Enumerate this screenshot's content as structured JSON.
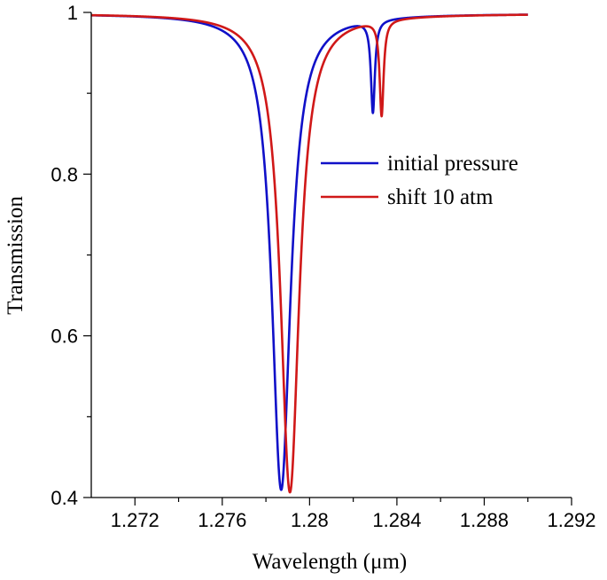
{
  "chart_data": {
    "type": "line",
    "title": "",
    "xlabel": "Wavelength (μm)",
    "ylabel": "Transmission",
    "xlim": [
      1.27,
      1.292
    ],
    "ylim": [
      0.4,
      1.0
    ],
    "x_ticks": [
      1.272,
      1.276,
      1.28,
      1.284,
      1.288,
      1.292
    ],
    "x_tick_labels": [
      "1.272",
      "1.276",
      "1.28",
      "1.284",
      "1.288",
      "1.292"
    ],
    "x_minor_ticks": [
      1.274,
      1.278,
      1.282,
      1.286,
      1.29
    ],
    "y_ticks": [
      0.4,
      0.6,
      0.8,
      1.0
    ],
    "y_tick_labels": [
      "0.4",
      "0.6",
      "0.8",
      "1"
    ],
    "y_minor_ticks": [
      0.5,
      0.7,
      0.9
    ],
    "grid": false,
    "legend_position": "right",
    "x_range": [
      1.27,
      1.29
    ],
    "series": [
      {
        "name": "initial pressure",
        "color": "#1010c8",
        "baseline": 0.9985,
        "dips": [
          {
            "center": 1.2787,
            "depth": 0.589,
            "hwhm": 0.00052
          },
          {
            "center": 1.2829,
            "depth": 0.114,
            "hwhm": 0.00011
          }
        ]
      },
      {
        "name": "shift 10 atm",
        "color": "#d01818",
        "baseline": 0.9985,
        "dips": [
          {
            "center": 1.2791,
            "depth": 0.592,
            "hwhm": 0.00052
          },
          {
            "center": 1.2833,
            "depth": 0.118,
            "hwhm": 0.00011
          }
        ]
      }
    ]
  }
}
